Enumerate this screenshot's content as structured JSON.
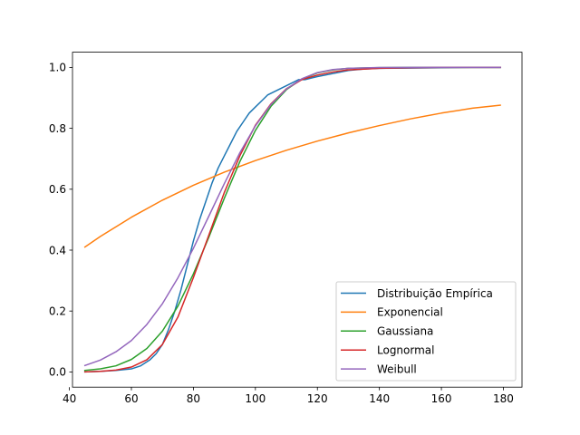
{
  "chart_data": {
    "type": "line",
    "title": "",
    "xlabel": "",
    "ylabel": "",
    "xlim": [
      41,
      186
    ],
    "ylim": [
      -0.05,
      1.05
    ],
    "xticks": [
      40,
      60,
      80,
      100,
      120,
      140,
      160,
      180
    ],
    "yticks": [
      0.0,
      0.2,
      0.4,
      0.6,
      0.8,
      1.0
    ],
    "xtick_labels": [
      "40",
      "60",
      "80",
      "100",
      "120",
      "140",
      "160",
      "180"
    ],
    "ytick_labels": [
      "0.0",
      "0.2",
      "0.4",
      "0.6",
      "0.8",
      "1.0"
    ],
    "grid": false,
    "legend_position": "lower-right",
    "series": [
      {
        "name": "Distribuição Empírica",
        "color": "#1f77b4",
        "x": [
          45,
          50,
          55,
          60,
          63,
          66,
          68,
          70,
          72,
          74,
          76,
          78,
          80,
          82,
          84,
          86,
          88,
          90,
          92,
          94,
          96,
          98,
          100,
          102,
          104,
          106,
          108,
          110,
          112,
          114,
          116,
          118,
          120,
          125,
          130,
          135,
          140,
          150,
          160,
          170,
          179
        ],
        "y": [
          0.0,
          0.002,
          0.005,
          0.01,
          0.02,
          0.04,
          0.06,
          0.09,
          0.14,
          0.2,
          0.27,
          0.35,
          0.43,
          0.5,
          0.56,
          0.62,
          0.67,
          0.71,
          0.75,
          0.79,
          0.82,
          0.85,
          0.87,
          0.89,
          0.91,
          0.92,
          0.93,
          0.94,
          0.95,
          0.96,
          0.96,
          0.965,
          0.97,
          0.98,
          0.99,
          0.995,
          0.997,
          0.998,
          0.999,
          1.0,
          1.0
        ]
      },
      {
        "name": "Exponencial",
        "color": "#ff7f0e",
        "x": [
          45,
          50,
          60,
          70,
          80,
          90,
          100,
          110,
          120,
          130,
          140,
          150,
          160,
          170,
          179
        ],
        "y": [
          0.41,
          0.445,
          0.508,
          0.564,
          0.613,
          0.656,
          0.694,
          0.728,
          0.758,
          0.785,
          0.809,
          0.831,
          0.85,
          0.866,
          0.876
        ]
      },
      {
        "name": "Gaussiana",
        "color": "#2ca02c",
        "x": [
          45,
          50,
          55,
          60,
          65,
          70,
          75,
          80,
          85,
          90,
          95,
          100,
          105,
          110,
          115,
          120,
          125,
          130,
          140,
          150,
          160,
          170,
          179
        ],
        "y": [
          0.005,
          0.01,
          0.02,
          0.041,
          0.077,
          0.134,
          0.216,
          0.322,
          0.443,
          0.571,
          0.691,
          0.793,
          0.872,
          0.927,
          0.962,
          0.982,
          0.992,
          0.997,
          0.9995,
          1.0,
          1.0,
          1.0,
          1.0
        ]
      },
      {
        "name": "Lognormal",
        "color": "#d62728",
        "x": [
          45,
          50,
          55,
          60,
          65,
          70,
          75,
          80,
          85,
          90,
          95,
          100,
          105,
          110,
          115,
          120,
          125,
          130,
          140,
          150,
          160,
          170,
          179
        ],
        "y": [
          0.0,
          0.002,
          0.006,
          0.016,
          0.04,
          0.09,
          0.18,
          0.31,
          0.45,
          0.59,
          0.71,
          0.81,
          0.88,
          0.93,
          0.96,
          0.975,
          0.985,
          0.992,
          0.997,
          0.999,
          1.0,
          1.0,
          1.0
        ]
      },
      {
        "name": "Weibull",
        "color": "#9467bd",
        "x": [
          45,
          50,
          55,
          60,
          65,
          70,
          75,
          80,
          85,
          90,
          95,
          100,
          105,
          110,
          115,
          120,
          125,
          130,
          140,
          150,
          160,
          170,
          179
        ],
        "y": [
          0.021,
          0.039,
          0.066,
          0.103,
          0.156,
          0.224,
          0.309,
          0.406,
          0.512,
          0.619,
          0.72,
          0.808,
          0.878,
          0.929,
          0.963,
          0.983,
          0.993,
          0.997,
          0.9997,
          1.0,
          1.0,
          1.0,
          1.0
        ]
      }
    ]
  }
}
